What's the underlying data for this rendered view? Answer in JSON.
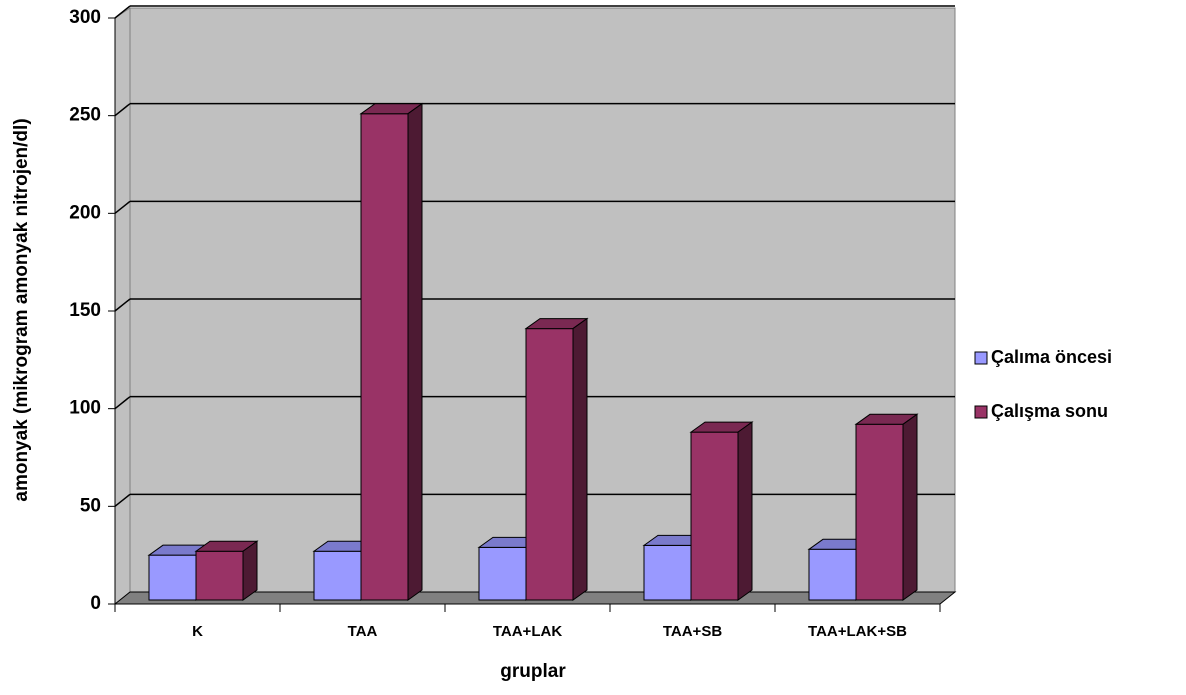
{
  "chart_data": {
    "type": "bar3d",
    "categories": [
      "K",
      "TAA",
      "TAA+LAK",
      "TAA+SB",
      "TAA+LAK+SB"
    ],
    "series": [
      {
        "name": "Çalıma öncesi",
        "color": "#9999ff",
        "values": [
          25,
          27,
          29,
          30,
          28
        ]
      },
      {
        "name": "Çalışma sonu",
        "color": "#993366",
        "values": [
          27,
          251,
          141,
          88,
          92
        ]
      }
    ],
    "ylim": [
      0,
      300
    ],
    "yticks": [
      0,
      50,
      100,
      150,
      200,
      250,
      300
    ],
    "grid": true,
    "ylabel": "amonyak (mikrogram amonyak nitrojen/dl)",
    "xlabel": "gruplar",
    "legend": "right"
  }
}
